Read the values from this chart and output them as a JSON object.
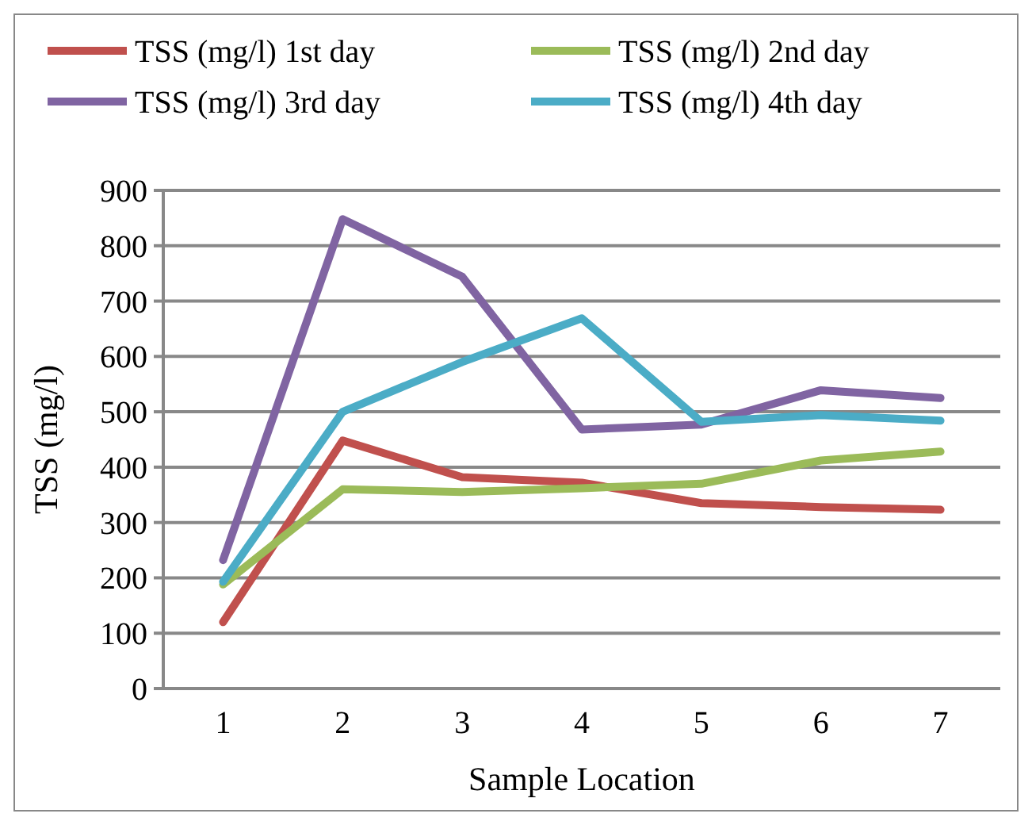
{
  "chart_data": {
    "type": "line",
    "xlabel": "Sample Location",
    "ylabel": "TSS (mg/l)",
    "categories": [
      "1",
      "2",
      "3",
      "4",
      "5",
      "6",
      "7"
    ],
    "ylim": [
      0,
      900
    ],
    "yticks": [
      0,
      100,
      200,
      300,
      400,
      500,
      600,
      700,
      800,
      900
    ],
    "grid": "y",
    "legend": "top",
    "marker": "none",
    "line_style": "solid",
    "series": [
      {
        "name": "TSS (mg/l) 1st day",
        "color": "#c0504d",
        "values": [
          120,
          448,
          382,
          372,
          335,
          328,
          323
        ]
      },
      {
        "name": "TSS (mg/l) 2nd day",
        "color": "#9bbb59",
        "values": [
          188,
          360,
          355,
          362,
          370,
          412,
          428
        ]
      },
      {
        "name": "TSS (mg/l) 3rd day",
        "color": "#8064a2",
        "values": [
          232,
          848,
          744,
          468,
          477,
          539,
          525
        ]
      },
      {
        "name": "TSS (mg/l) 4th day",
        "color": "#4bacc6",
        "values": [
          193,
          500,
          590,
          669,
          482,
          494,
          484
        ]
      }
    ]
  }
}
